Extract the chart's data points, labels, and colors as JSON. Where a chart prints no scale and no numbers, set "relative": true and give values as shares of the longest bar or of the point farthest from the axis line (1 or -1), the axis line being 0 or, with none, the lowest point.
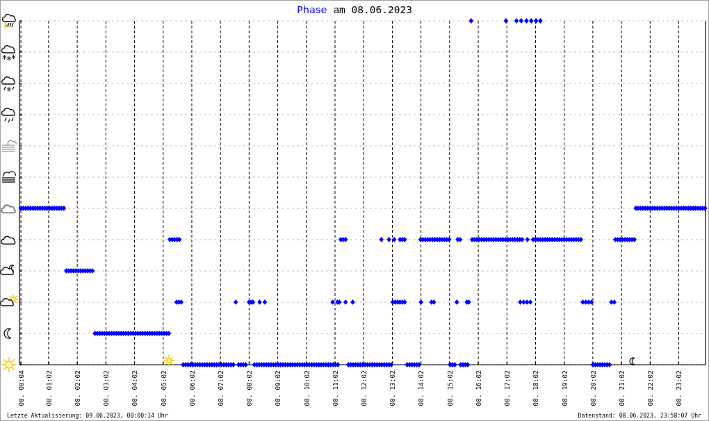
{
  "chart_data": {
    "type": "scatter",
    "title": "am 08.06.2023",
    "relative": true,
    "annotations": [
      "Letzte Aktualisierung: 09.06.2023, 00:00:14 Uhr",
      "Datenstand: 08.06.2023, 23:58:07 Uhr"
    ],
    "xlim": [
      "2023-06-08T00:01",
      "2023-06-08T23:58"
    ],
    "xticks": [
      {
        "value": "2023-06-08T00:04",
        "label": "08. 00:04"
      },
      {
        "value": "2023-06-08T01:02",
        "label": "08. 01:02"
      },
      {
        "value": "2023-06-08T02:02",
        "label": "08. 02:02"
      },
      {
        "value": "2023-06-08T03:02",
        "label": "08. 03:02"
      },
      {
        "value": "2023-06-08T04:02",
        "label": "08. 04:02"
      },
      {
        "value": "2023-06-08T05:02",
        "label": "08. 05:02"
      },
      {
        "value": "2023-06-08T06:02",
        "label": "08. 06:02"
      },
      {
        "value": "2023-06-08T07:02",
        "label": "08. 07:02"
      },
      {
        "value": "2023-06-08T08:02",
        "label": "08. 08:02"
      },
      {
        "value": "2023-06-08T09:02",
        "label": "08. 09:02"
      },
      {
        "value": "2023-06-08T10:02",
        "label": "08. 10:02"
      },
      {
        "value": "2023-06-08T11:02",
        "label": "08. 11:02"
      },
      {
        "value": "2023-06-08T12:02",
        "label": "08. 12:02"
      },
      {
        "value": "2023-06-08T13:02",
        "label": "08. 13:02"
      },
      {
        "value": "2023-06-08T14:02",
        "label": "08. 14:02"
      },
      {
        "value": "2023-06-08T15:02",
        "label": "08. 15:02"
      },
      {
        "value": "2023-06-08T16:02",
        "label": "08. 16:02"
      },
      {
        "value": "2023-06-08T17:02",
        "label": "08. 17:02"
      },
      {
        "value": "2023-06-08T18:02",
        "label": "08. 18:02"
      },
      {
        "value": "2023-06-08T19:02",
        "label": "08. 19:02"
      },
      {
        "value": "2023-06-08T20:02",
        "label": "08. 20:02"
      },
      {
        "value": "2023-06-08T21:02",
        "label": "08. 21:02"
      },
      {
        "value": "2023-06-08T22:02",
        "label": "08. 22:02"
      },
      {
        "value": "2023-06-08T23:02",
        "label": "08. 23:02"
      }
    ],
    "grid": true,
    "marker": "diamond",
    "series": [
      {
        "name": "Phase",
        "color": "#0000ff",
        "x": [
          "2023-06-08T00:04",
          "2023-06-08T00:09",
          "2023-06-08T00:14",
          "2023-06-08T00:19",
          "2023-06-08T00:24",
          "2023-06-08T00:29",
          "2023-06-08T00:34",
          "2023-06-08T00:39",
          "2023-06-08T00:44",
          "2023-06-08T00:49",
          "2023-06-08T00:54",
          "2023-06-08T00:59",
          "2023-06-08T01:04",
          "2023-06-08T01:09",
          "2023-06-08T01:14",
          "2023-06-08T01:19",
          "2023-06-08T01:24",
          "2023-06-08T01:29",
          "2023-06-08T01:34",
          "2023-06-08T01:39",
          "2023-06-08T01:44",
          "2023-06-08T01:49",
          "2023-06-08T01:54",
          "2023-06-08T01:59",
          "2023-06-08T02:04",
          "2023-06-08T02:09",
          "2023-06-08T02:14",
          "2023-06-08T02:19",
          "2023-06-08T02:24",
          "2023-06-08T02:29",
          "2023-06-08T02:34",
          "2023-06-08T02:39",
          "2023-06-08T02:44",
          "2023-06-08T02:49",
          "2023-06-08T02:54",
          "2023-06-08T02:59",
          "2023-06-08T03:04",
          "2023-06-08T03:09",
          "2023-06-08T03:14",
          "2023-06-08T03:19",
          "2023-06-08T03:24",
          "2023-06-08T03:29",
          "2023-06-08T03:34",
          "2023-06-08T03:39",
          "2023-06-08T03:44",
          "2023-06-08T03:49",
          "2023-06-08T03:54",
          "2023-06-08T03:59",
          "2023-06-08T04:04",
          "2023-06-08T04:09",
          "2023-06-08T04:14",
          "2023-06-08T04:19",
          "2023-06-08T04:24",
          "2023-06-08T04:29",
          "2023-06-08T04:34",
          "2023-06-08T04:39",
          "2023-06-08T04:44",
          "2023-06-08T04:49",
          "2023-06-08T04:54",
          "2023-06-08T04:59",
          "2023-06-08T05:04",
          "2023-06-08T05:09",
          "2023-06-08T05:14",
          "2023-06-08T05:16",
          "2023-06-08T05:21",
          "2023-06-08T05:26",
          "2023-06-08T05:30",
          "2023-06-08T05:31",
          "2023-06-08T05:35",
          "2023-06-08T05:36",
          "2023-06-08T05:40",
          "2023-06-08T05:44",
          "2023-06-08T05:49",
          "2023-06-08T05:54",
          "2023-06-08T05:59",
          "2023-06-08T06:04",
          "2023-06-08T06:09",
          "2023-06-08T06:14",
          "2023-06-08T06:19",
          "2023-06-08T06:24",
          "2023-06-08T06:29",
          "2023-06-08T06:34",
          "2023-06-08T06:39",
          "2023-06-08T06:44",
          "2023-06-08T06:49",
          "2023-06-08T06:54",
          "2023-06-08T06:59",
          "2023-06-08T07:04",
          "2023-06-08T07:09",
          "2023-06-08T07:14",
          "2023-06-08T07:19",
          "2023-06-08T07:24",
          "2023-06-08T07:29",
          "2023-06-08T07:34",
          "2023-06-08T07:40",
          "2023-06-08T07:45",
          "2023-06-08T07:50",
          "2023-06-08T07:55",
          "2023-06-08T08:02",
          "2023-06-08T08:06",
          "2023-06-08T08:10",
          "2023-06-08T08:13",
          "2023-06-08T08:18",
          "2023-06-08T08:23",
          "2023-06-08T08:24",
          "2023-06-08T08:28",
          "2023-06-08T08:33",
          "2023-06-08T08:35",
          "2023-06-08T08:38",
          "2023-06-08T08:43",
          "2023-06-08T08:48",
          "2023-06-08T08:53",
          "2023-06-08T08:58",
          "2023-06-08T09:03",
          "2023-06-08T09:08",
          "2023-06-08T09:13",
          "2023-06-08T09:18",
          "2023-06-08T09:23",
          "2023-06-08T09:28",
          "2023-06-08T09:33",
          "2023-06-08T09:38",
          "2023-06-08T09:43",
          "2023-06-08T09:48",
          "2023-06-08T09:53",
          "2023-06-08T09:58",
          "2023-06-08T10:03",
          "2023-06-08T10:08",
          "2023-06-08T10:13",
          "2023-06-08T10:18",
          "2023-06-08T10:23",
          "2023-06-08T10:28",
          "2023-06-08T10:33",
          "2023-06-08T10:38",
          "2023-06-08T10:43",
          "2023-06-08T10:48",
          "2023-06-08T10:53",
          "2023-06-08T10:57",
          "2023-06-08T10:58",
          "2023-06-08T11:03",
          "2023-06-08T11:07",
          "2023-06-08T11:08",
          "2023-06-08T11:11",
          "2023-06-08T11:14",
          "2023-06-08T11:19",
          "2023-06-08T11:24",
          "2023-06-08T11:24",
          "2023-06-08T11:30",
          "2023-06-08T11:35",
          "2023-06-08T11:39",
          "2023-06-08T11:40",
          "2023-06-08T11:45",
          "2023-06-08T11:50",
          "2023-06-08T11:55",
          "2023-06-08T12:00",
          "2023-06-08T12:05",
          "2023-06-08T12:10",
          "2023-06-08T12:15",
          "2023-06-08T12:20",
          "2023-06-08T12:25",
          "2023-06-08T12:30",
          "2023-06-08T12:35",
          "2023-06-08T12:39",
          "2023-06-08T12:40",
          "2023-06-08T12:45",
          "2023-06-08T12:50",
          "2023-06-08T12:55",
          "2023-06-08T12:55",
          "2023-06-08T13:00",
          "2023-06-08T13:03",
          "2023-06-08T13:06",
          "2023-06-08T13:08",
          "2023-06-08T13:13",
          "2023-06-08T13:18",
          "2023-06-08T13:18",
          "2023-06-08T13:23",
          "2023-06-08T13:23",
          "2023-06-08T13:28",
          "2023-06-08T13:28",
          "2023-06-08T13:33",
          "2023-06-08T13:38",
          "2023-06-08T13:43",
          "2023-06-08T13:48",
          "2023-06-08T13:53",
          "2023-06-08T13:58",
          "2023-06-08T14:01",
          "2023-06-08T14:02",
          "2023-06-08T14:06",
          "2023-06-08T14:11",
          "2023-06-08T14:16",
          "2023-06-08T14:21",
          "2023-06-08T14:24",
          "2023-06-08T14:26",
          "2023-06-08T14:29",
          "2023-06-08T14:31",
          "2023-06-08T14:36",
          "2023-06-08T14:41",
          "2023-06-08T14:46",
          "2023-06-08T14:51",
          "2023-06-08T14:56",
          "2023-06-08T15:01",
          "2023-06-08T15:03",
          "2023-06-08T15:08",
          "2023-06-08T15:13",
          "2023-06-08T15:17",
          "2023-06-08T15:19",
          "2023-06-08T15:24",
          "2023-06-08T15:25",
          "2023-06-08T15:30",
          "2023-06-08T15:35",
          "2023-06-08T15:38",
          "2023-06-08T15:40",
          "2023-06-08T15:42",
          "2023-06-08T15:47",
          "2023-06-08T15:49",
          "2023-06-08T15:54",
          "2023-06-08T15:59",
          "2023-06-08T16:04",
          "2023-06-08T16:09",
          "2023-06-08T16:14",
          "2023-06-08T16:19",
          "2023-06-08T16:24",
          "2023-06-08T16:29",
          "2023-06-08T16:34",
          "2023-06-08T16:39",
          "2023-06-08T16:44",
          "2023-06-08T16:49",
          "2023-06-08T16:54",
          "2023-06-08T16:59",
          "2023-06-08T17:00",
          "2023-06-08T17:04",
          "2023-06-08T17:09",
          "2023-06-08T17:14",
          "2023-06-08T17:19",
          "2023-06-08T17:22",
          "2023-06-08T17:24",
          "2023-06-08T17:29",
          "2023-06-08T17:30",
          "2023-06-08T17:32",
          "2023-06-08T17:34",
          "2023-06-08T17:37",
          "2023-06-08T17:43",
          "2023-06-08T17:44",
          "2023-06-08T17:45",
          "2023-06-08T17:51",
          "2023-06-08T17:53",
          "2023-06-08T17:57",
          "2023-06-08T18:02",
          "2023-06-08T18:03",
          "2023-06-08T18:07",
          "2023-06-08T18:12",
          "2023-06-08T18:12",
          "2023-06-08T18:17",
          "2023-06-08T18:22",
          "2023-06-08T18:27",
          "2023-06-08T18:32",
          "2023-06-08T18:37",
          "2023-06-08T18:42",
          "2023-06-08T18:47",
          "2023-06-08T18:52",
          "2023-06-08T18:57",
          "2023-06-08T19:02",
          "2023-06-08T19:07",
          "2023-06-08T19:12",
          "2023-06-08T19:17",
          "2023-06-08T19:22",
          "2023-06-08T19:27",
          "2023-06-08T19:32",
          "2023-06-08T19:37",
          "2023-06-08T19:41",
          "2023-06-08T19:47",
          "2023-06-08T19:53",
          "2023-06-08T19:59",
          "2023-06-08T20:02",
          "2023-06-08T20:07",
          "2023-06-08T20:12",
          "2023-06-08T20:17",
          "2023-06-08T20:22",
          "2023-06-08T20:27",
          "2023-06-08T20:32",
          "2023-06-08T20:37",
          "2023-06-08T20:41",
          "2023-06-08T20:47",
          "2023-06-08T20:49",
          "2023-06-08T20:54",
          "2023-06-08T20:59",
          "2023-06-08T21:04",
          "2023-06-08T21:09",
          "2023-06-08T21:14",
          "2023-06-08T21:19",
          "2023-06-08T21:24",
          "2023-06-08T21:29",
          "2023-06-08T21:32",
          "2023-06-08T21:37",
          "2023-06-08T21:42",
          "2023-06-08T21:47",
          "2023-06-08T21:52",
          "2023-06-08T21:57",
          "2023-06-08T22:02",
          "2023-06-08T22:07",
          "2023-06-08T22:12",
          "2023-06-08T22:17",
          "2023-06-08T22:22",
          "2023-06-08T22:27",
          "2023-06-08T22:32",
          "2023-06-08T22:37",
          "2023-06-08T22:42",
          "2023-06-08T22:47",
          "2023-06-08T22:52",
          "2023-06-08T22:57",
          "2023-06-08T23:02",
          "2023-06-08T23:07",
          "2023-06-08T23:12",
          "2023-06-08T23:17",
          "2023-06-08T23:22",
          "2023-06-08T23:27",
          "2023-06-08T23:32",
          "2023-06-08T23:37",
          "2023-06-08T23:42",
          "2023-06-08T23:47",
          "2023-06-08T23:52",
          "2023-06-08T23:57"
        ],
        "values": [
          0.455,
          0.455,
          0.455,
          0.455,
          0.455,
          0.455,
          0.455,
          0.455,
          0.455,
          0.455,
          0.455,
          0.455,
          0.455,
          0.455,
          0.455,
          0.455,
          0.455,
          0.455,
          0.455,
          0.273,
          0.273,
          0.273,
          0.273,
          0.273,
          0.273,
          0.273,
          0.273,
          0.273,
          0.273,
          0.273,
          0.273,
          0.091,
          0.091,
          0.091,
          0.091,
          0.091,
          0.091,
          0.091,
          0.091,
          0.091,
          0.091,
          0.091,
          0.091,
          0.091,
          0.091,
          0.091,
          0.091,
          0.091,
          0.091,
          0.091,
          0.091,
          0.091,
          0.091,
          0.091,
          0.091,
          0.091,
          0.091,
          0.091,
          0.091,
          0.091,
          0.091,
          0.091,
          0.091,
          0.364,
          0.364,
          0.364,
          0.182,
          0.364,
          0.182,
          0.364,
          0.182,
          0,
          0,
          0,
          0,
          0,
          0,
          0,
          0,
          0,
          0,
          0,
          0,
          0,
          0,
          0,
          0,
          0,
          0,
          0,
          0,
          0,
          0,
          0.182,
          0,
          0,
          0,
          0,
          0.182,
          0.182,
          0.182,
          0,
          0,
          0,
          0.182,
          0,
          0,
          0.182,
          0,
          0,
          0,
          0,
          0,
          0,
          0,
          0,
          0,
          0,
          0,
          0,
          0,
          0,
          0,
          0,
          0,
          0,
          0,
          0,
          0,
          0,
          0,
          0,
          0,
          0,
          0,
          0,
          0.182,
          0,
          0,
          0.182,
          0,
          0.182,
          0.364,
          0.364,
          0.364,
          0.182,
          0,
          0,
          0.182,
          0,
          0,
          0,
          0,
          0,
          0,
          0,
          0,
          0,
          0,
          0,
          0,
          0.364,
          0,
          0,
          0,
          0,
          0.364,
          0,
          0.182,
          0.364,
          0.182,
          0.182,
          0.364,
          0.182,
          0.364,
          0.182,
          0.364,
          0.182,
          0,
          0,
          0,
          0,
          0,
          0,
          0.364,
          0.182,
          0.364,
          0.364,
          0.364,
          0.364,
          0.182,
          0.364,
          0.182,
          0.364,
          0.364,
          0.364,
          0.364,
          0.364,
          0.364,
          0.364,
          0,
          0,
          0,
          0.182,
          0.364,
          0.364,
          0,
          0,
          0,
          0.182,
          0,
          0.182,
          1,
          0.364,
          0.364,
          0.364,
          0.364,
          0.364,
          0.364,
          0.364,
          0.364,
          0.364,
          0.364,
          0.364,
          0.364,
          0.364,
          0.364,
          0.364,
          1,
          0.364,
          0.364,
          0.364,
          0.364,
          1,
          0.364,
          0.364,
          0.182,
          1,
          0.364,
          0.182,
          1,
          0.182,
          0.364,
          0.182,
          1,
          0.364,
          0.364,
          1,
          0.364,
          1,
          0.364,
          0.364,
          0.364,
          0.364,
          0.364,
          0.364,
          0.364,
          0.364,
          0.364,
          0.364,
          0.364,
          0.364,
          0.364,
          0.364,
          0.364,
          0.364,
          0.364,
          0.364,
          0.182,
          0.182,
          0.182,
          0.182,
          0,
          0,
          0,
          0,
          0,
          0,
          0,
          0,
          0.182,
          0.182,
          0.364,
          0.364,
          0.364,
          0.364,
          0.364,
          0.364,
          0.364,
          0.364,
          0.364,
          0.455,
          0.455,
          0.455,
          0.455,
          0.455,
          0.455,
          0.455,
          0.455,
          0.455,
          0.455,
          0.455,
          0.455,
          0.455,
          0.455,
          0.455,
          0.455,
          0.455,
          0.455,
          0.455,
          0.455,
          0.455,
          0.455,
          0.455,
          0.455,
          0.455,
          0.455,
          0.455,
          0.455,
          0.455,
          0.455
        ]
      }
    ]
  }
}
